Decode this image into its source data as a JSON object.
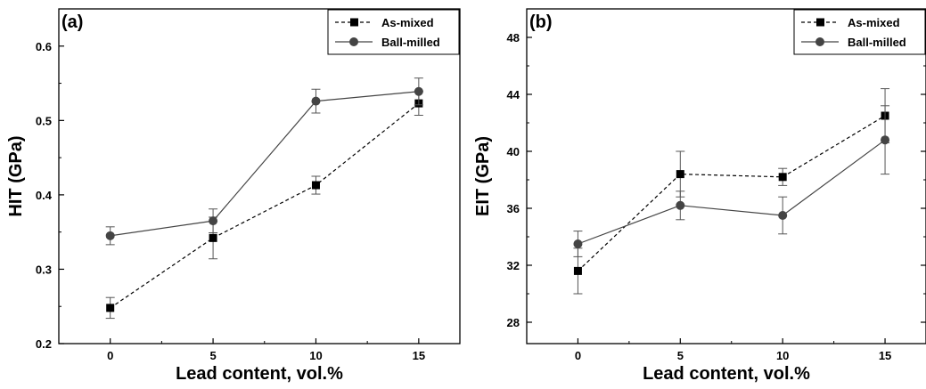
{
  "colors": {
    "as_mixed": "#000000",
    "ball_milled": "#444444",
    "axis": "#000000",
    "errorbar": "#555555"
  },
  "icons": {
    "as_mixed_marker": "square-marker-icon",
    "ball_milled_marker": "circle-marker-icon"
  },
  "chart_data": [
    {
      "type": "line",
      "panel_label": "(a)",
      "xlabel": "Lead content, vol.%",
      "ylabel": "HIT (GPa)",
      "x": [
        0,
        5,
        10,
        15
      ],
      "xlim": [
        -2.5,
        17
      ],
      "xticks": [
        0,
        5,
        10,
        15
      ],
      "ylim": [
        0.2,
        0.65
      ],
      "yticks": [
        0.2,
        0.3,
        0.4,
        0.5,
        0.6
      ],
      "ytick_labels": [
        "0.2",
        "0.3",
        "0.4",
        "0.5",
        "0.6"
      ],
      "legend_position": "top-right",
      "grid": false,
      "series": [
        {
          "name": "As-mixed",
          "marker": "square",
          "line": "dashed",
          "values": [
            0.248,
            0.342,
            0.413,
            0.523
          ],
          "errors": [
            0.014,
            0.028,
            0.012,
            0.016
          ]
        },
        {
          "name": "Ball-milled",
          "marker": "circle",
          "line": "solid",
          "values": [
            0.345,
            0.365,
            0.526,
            0.539
          ],
          "errors": [
            0.012,
            0.016,
            0.016,
            0.018
          ]
        }
      ]
    },
    {
      "type": "line",
      "panel_label": "(b)",
      "xlabel": "Lead content, vol.%",
      "ylabel": "EIT (GPa)",
      "x": [
        0,
        5,
        10,
        15
      ],
      "xlim": [
        -2.5,
        17
      ],
      "xticks": [
        0,
        5,
        10,
        15
      ],
      "ylim": [
        26.5,
        50
      ],
      "yticks": [
        28,
        32,
        36,
        40,
        44,
        48
      ],
      "ytick_labels": [
        "28",
        "32",
        "36",
        "40",
        "44",
        "48"
      ],
      "legend_position": "top-right",
      "grid": false,
      "series": [
        {
          "name": "As-mixed",
          "marker": "square",
          "line": "dashed",
          "values": [
            31.6,
            38.4,
            38.2,
            42.5
          ],
          "errors": [
            1.6,
            1.6,
            0.6,
            1.9
          ]
        },
        {
          "name": "Ball-milled",
          "marker": "circle",
          "line": "solid",
          "values": [
            33.5,
            36.2,
            35.5,
            40.8
          ],
          "errors": [
            0.9,
            1.0,
            1.3,
            2.4
          ]
        }
      ]
    }
  ]
}
